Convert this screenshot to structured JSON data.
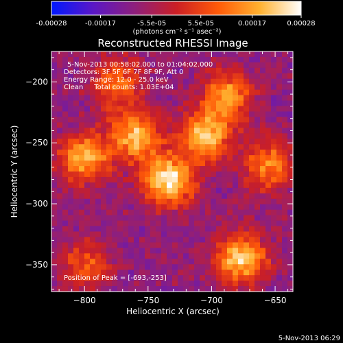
{
  "colorbar": {
    "tick_labels": [
      "-0.00028",
      "-0.00017",
      "-5.5e-05",
      "5.5e-05",
      "0.00017",
      "0.00028"
    ],
    "tick_values": [
      -0.00028,
      -0.00017,
      -5.5e-05,
      5.5e-05,
      0.00017,
      0.00028
    ],
    "range": [
      -0.00028,
      0.00028
    ],
    "unit_label": "(photons cm⁻² s⁻¹ asec⁻²)",
    "colors": [
      "#0018ff",
      "#5a17c6",
      "#8e1f7c",
      "#cb1f25",
      "#ff5a08",
      "#ffb12f",
      "#ffffff"
    ]
  },
  "chart_data": {
    "type": "heatmap",
    "title": "Reconstructed RHESSI Image",
    "xlabel": "Heliocentric X (arcsec)",
    "ylabel": "Heliocentric Y (arcsec)",
    "xlim": [
      -826,
      -636
    ],
    "ylim": [
      -372,
      -175
    ],
    "x_ticks": [
      -800,
      -750,
      -700,
      -650
    ],
    "y_ticks": [
      -350,
      -300,
      -250,
      -200
    ],
    "x_tick_labels": [
      "−800",
      "−750",
      "−700",
      "−650"
    ],
    "y_tick_labels": [
      "−350",
      "−300",
      "−250",
      "−200"
    ],
    "annotations": [
      "5-Nov-2013 00:58:02.000 to 01:04:02.000",
      "Detectors: 3F 5F 6F 7F 8F 9F, Att 0",
      "Energy Range: 12.0 - 25.0 keV",
      "Clean     Total counts: 1.03E+04"
    ],
    "peak_label": "Position of Peak = [-693,-253]",
    "peak_position": [
      -693,
      -253
    ],
    "sources": [
      {
        "x": -734,
        "y": -281,
        "peak": 0.00028
      },
      {
        "x": -705,
        "y": -245,
        "peak": 0.00022
      },
      {
        "x": -760,
        "y": -244,
        "peak": 0.00021
      },
      {
        "x": -800,
        "y": -262,
        "peak": 0.0002
      },
      {
        "x": -775,
        "y": -200,
        "peak": 0.00012
      },
      {
        "x": -688,
        "y": -212,
        "peak": 0.00017
      },
      {
        "x": -677,
        "y": -345,
        "peak": 0.00024
      },
      {
        "x": -655,
        "y": -268,
        "peak": 0.00015
      },
      {
        "x": -800,
        "y": -350,
        "peak": 9e-05
      }
    ]
  },
  "footer": {
    "timestamp": "5-Nov-2013 06:29"
  }
}
